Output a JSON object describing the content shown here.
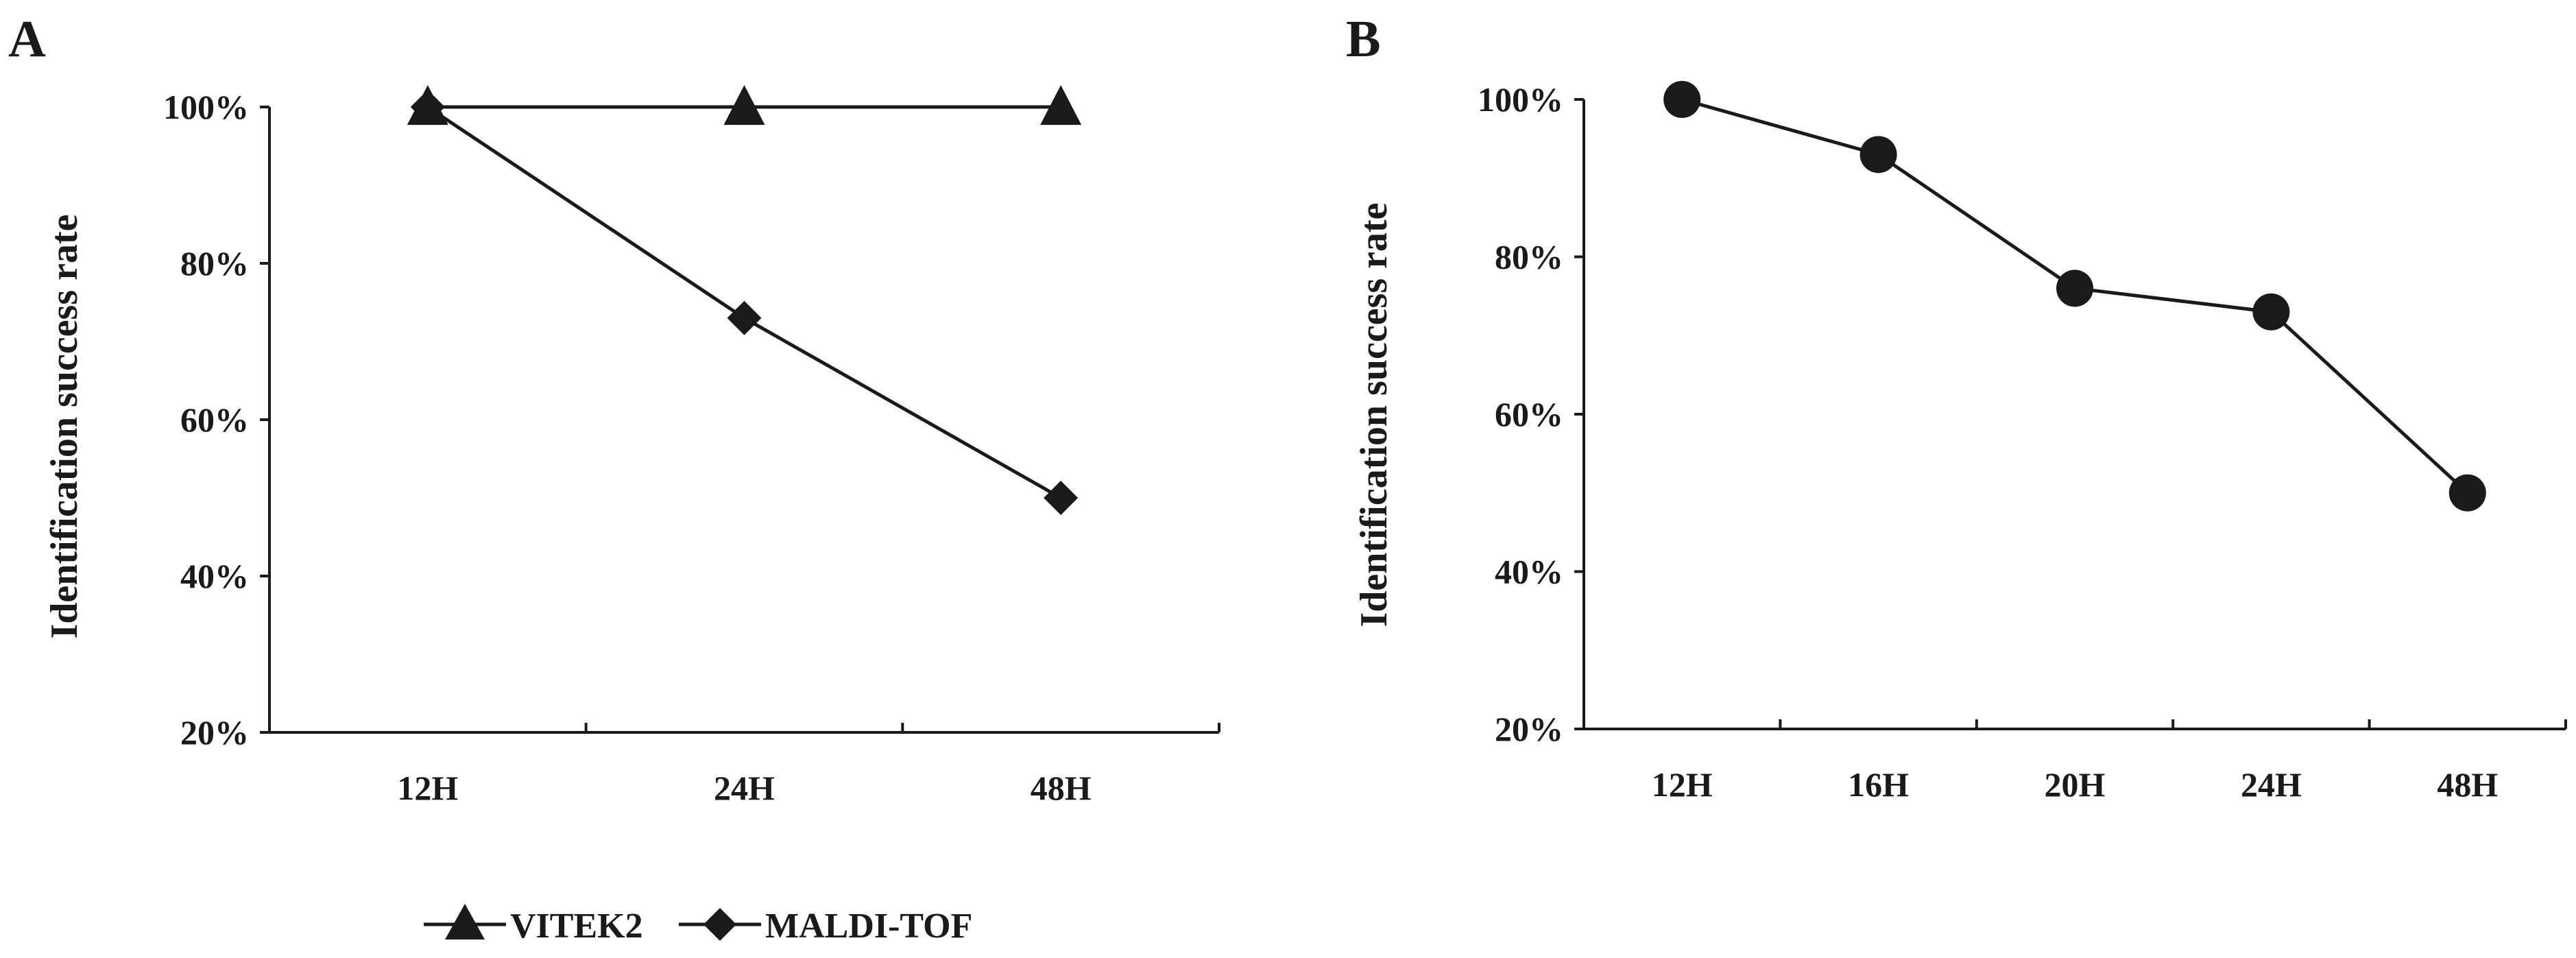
{
  "chart_data": [
    {
      "panel": "A",
      "type": "line",
      "title": "",
      "xlabel": "",
      "ylabel": "Identification success rate",
      "categories": [
        "12H",
        "24H",
        "48H"
      ],
      "yticks": [
        "20%",
        "40%",
        "60%",
        "80%",
        "100%"
      ],
      "ylim": [
        20,
        100
      ],
      "grid": false,
      "legend_position": "bottom",
      "series": [
        {
          "name": "VITEK2",
          "marker": "triangle",
          "values": [
            100,
            100,
            100
          ]
        },
        {
          "name": "MALDI-TOF",
          "marker": "diamond",
          "values": [
            100,
            73,
            50
          ]
        }
      ]
    },
    {
      "panel": "B",
      "type": "line",
      "title": "",
      "xlabel": "",
      "ylabel": "Identification success rate",
      "categories": [
        "12H",
        "16H",
        "20H",
        "24H",
        "48H"
      ],
      "yticks": [
        "20%",
        "40%",
        "60%",
        "80%",
        "100%"
      ],
      "ylim": [
        20,
        100
      ],
      "grid": false,
      "series": [
        {
          "marker": "circle",
          "values": [
            100,
            93,
            76,
            73,
            50
          ]
        }
      ]
    }
  ],
  "colors": {
    "ink": "#1a1a1a",
    "background": "#ffffff"
  }
}
